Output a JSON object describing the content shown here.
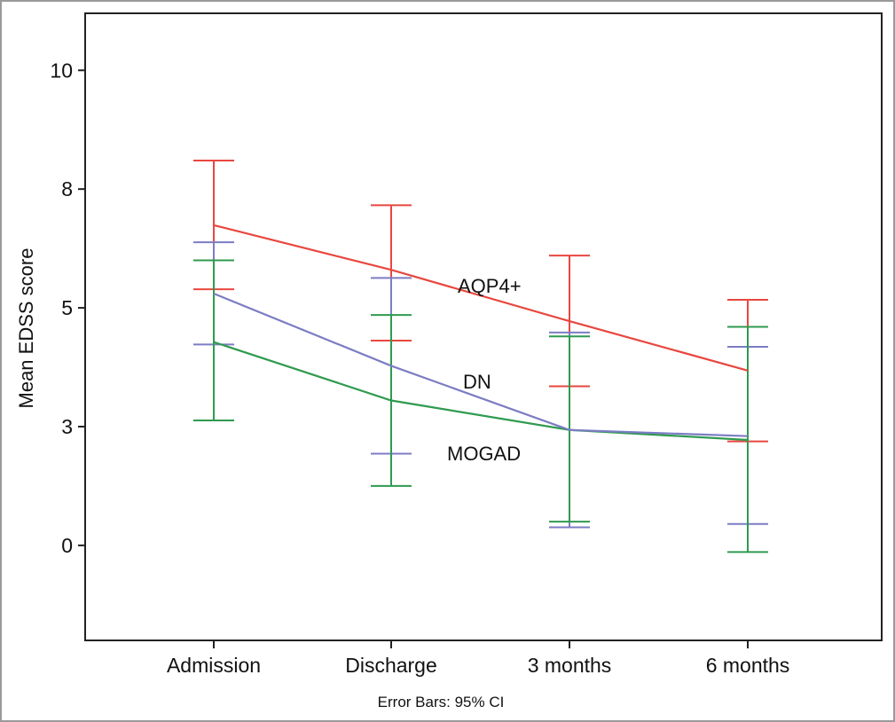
{
  "chart_data": {
    "type": "line",
    "ylabel": "Mean EDSS score",
    "xlabel": "",
    "note": "Error Bars: 95% CI",
    "categories": [
      "Admission",
      "Discharge",
      "3 months",
      "6 months"
    ],
    "ylim": [
      -2,
      11.2
    ],
    "yticks": [
      {
        "value": 0,
        "label": "0"
      },
      {
        "value": 2.5,
        "label": "3"
      },
      {
        "value": 5,
        "label": "5"
      },
      {
        "value": 7.5,
        "label": "8"
      },
      {
        "value": 10,
        "label": "10"
      }
    ],
    "grid": false,
    "series": [
      {
        "name": "AQP4+",
        "color": "#e8473f",
        "values": [
          6.74,
          5.8,
          4.72,
          3.68
        ],
        "ci_low": [
          5.39,
          4.31,
          3.35,
          2.19
        ],
        "ci_high": [
          8.1,
          7.16,
          6.1,
          5.17
        ]
      },
      {
        "name": "DN",
        "color": "#7c7cc4",
        "values": [
          5.3,
          3.78,
          2.43,
          2.3
        ],
        "ci_low": [
          4.23,
          1.93,
          0.38,
          0.45
        ],
        "ci_high": [
          6.38,
          5.63,
          4.48,
          4.18
        ]
      },
      {
        "name": "MOGAD",
        "color": "#2f9a4f",
        "values": [
          4.28,
          3.05,
          2.43,
          2.22
        ],
        "ci_low": [
          2.63,
          1.25,
          0.5,
          -0.14
        ],
        "ci_high": [
          6.0,
          4.85,
          4.4,
          4.6
        ]
      }
    ]
  }
}
